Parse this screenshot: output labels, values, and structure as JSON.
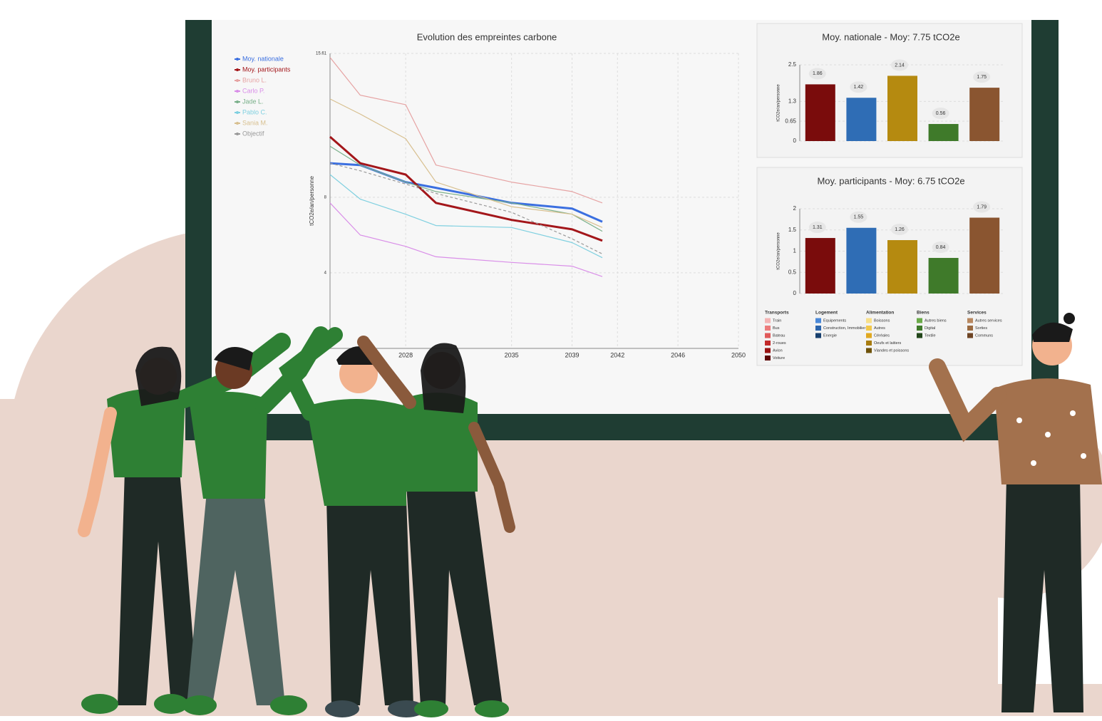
{
  "chart_data": [
    {
      "type": "line",
      "title": "Evolution des empreintes carbone",
      "y_label": "tCO2e/an/personne",
      "x": [
        2023,
        2025,
        2028,
        2030,
        2035,
        2039,
        2041
      ],
      "xlim": [
        2023,
        2050
      ],
      "xticks": [
        2028,
        2035,
        2039,
        2042,
        2046,
        2050
      ],
      "ylim": [
        0,
        15.61
      ],
      "yticks": [
        4,
        8,
        15.61
      ],
      "grid": true,
      "series": [
        {
          "name": "Moy. nationale",
          "color": "#3b6fe0",
          "values": [
            9.8,
            9.7,
            8.8,
            8.5,
            7.7,
            7.4,
            6.7
          ]
        },
        {
          "name": "Moy. participants",
          "color": "#a3161a",
          "values": [
            11.2,
            9.8,
            9.2,
            7.7,
            6.8,
            6.3,
            5.7
          ]
        },
        {
          "name": "Bruno L.",
          "color": "#e6a3a3",
          "values": [
            15.4,
            13.4,
            12.9,
            9.7,
            8.8,
            8.3,
            7.7
          ]
        },
        {
          "name": "Carlo P.",
          "color": "#d98ee8",
          "values": [
            7.7,
            6.0,
            5.4,
            4.85,
            4.55,
            4.35,
            3.8
          ]
        },
        {
          "name": "Jade L.",
          "color": "#7ab08a",
          "values": [
            10.7,
            9.7,
            8.8,
            8.3,
            7.7,
            7.1,
            6.2
          ]
        },
        {
          "name": "Pablo C.",
          "color": "#7fd0e0",
          "values": [
            9.2,
            7.9,
            7.1,
            6.5,
            6.4,
            5.6,
            4.8
          ]
        },
        {
          "name": "Sania M.",
          "color": "#d8c090",
          "values": [
            13.2,
            12.4,
            11.1,
            8.8,
            7.5,
            7.1,
            6.4
          ]
        },
        {
          "name": "Objectif",
          "color": "#999999",
          "dashed": true,
          "values": [
            9.8,
            9.4,
            8.7,
            8.2,
            7.2,
            5.8,
            5.0
          ]
        }
      ]
    },
    {
      "type": "bar",
      "title": "Moy. nationale - Moy: 7.75 tCO2e",
      "y_label": "tCO2e/an/personne",
      "values": [
        1.86,
        1.42,
        2.14,
        0.56,
        1.75
      ],
      "colors": [
        "#7a0c0c",
        "#2f6db5",
        "#b58a10",
        "#3f7a2a",
        "#8a5530"
      ],
      "ylim": [
        0,
        2.5
      ],
      "yticks": [
        0,
        0.65,
        1.3,
        2.5
      ],
      "grid": true
    },
    {
      "type": "bar",
      "title": "Moy. participants - Moy: 6.75 tCO2e",
      "y_label": "tCO2e/an/personne",
      "values": [
        1.31,
        1.55,
        1.26,
        0.84,
        1.79
      ],
      "colors": [
        "#7a0c0c",
        "#2f6db5",
        "#b58a10",
        "#3f7a2a",
        "#8a5530"
      ],
      "ylim": [
        0,
        2
      ],
      "yticks": [
        0,
        0.5,
        1,
        1.5,
        2
      ],
      "grid": true,
      "legend": [
        {
          "name": "Transports",
          "items": [
            "Train",
            "Bus",
            "Bateau",
            "2-roues",
            "Avion",
            "Voiture"
          ],
          "colors": [
            "#f4b4b4",
            "#ec7b7b",
            "#e05a5a",
            "#c22a2a",
            "#9a1414",
            "#5e0808"
          ]
        },
        {
          "name": "Logement",
          "items": [
            "Equipements",
            "Construction, Immobilier",
            "Energie"
          ],
          "colors": [
            "#4a88d8",
            "#2b64ac",
            "#173f6e"
          ]
        },
        {
          "name": "Alimentation",
          "items": [
            "Boissons",
            "Autres",
            "Céréales",
            "Oeufs et laitiers",
            "Viandes et poissons"
          ],
          "colors": [
            "#f8e08a",
            "#f2c84a",
            "#e0a820",
            "#a87c10",
            "#6e520a"
          ]
        },
        {
          "name": "Biens",
          "items": [
            "Autres biens",
            "Digital",
            "Textile"
          ],
          "colors": [
            "#6aaa48",
            "#3f7a2a",
            "#22461a"
          ]
        },
        {
          "name": "Services",
          "items": [
            "Autres services",
            "Sorties",
            "Communs"
          ],
          "colors": [
            "#b88860",
            "#9a6a40",
            "#6e4424"
          ]
        }
      ]
    }
  ]
}
